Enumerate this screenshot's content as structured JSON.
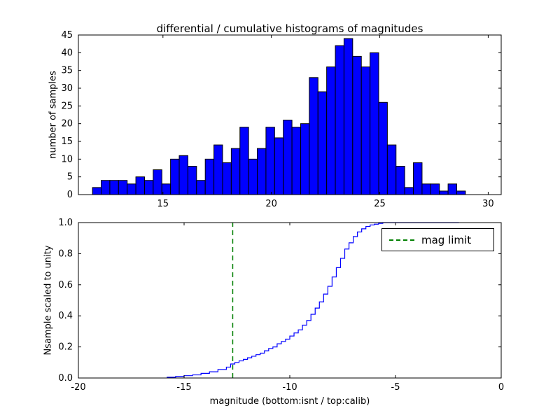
{
  "figure": {
    "background": "#ffffff"
  },
  "chart_data": [
    {
      "type": "bar",
      "title": "differential / cumulative histograms of magnitudes",
      "xlabel": "",
      "ylabel": "number of samples",
      "xlim": [
        11.1,
        30.6
      ],
      "ylim": [
        0,
        45
      ],
      "xticks": [
        15,
        20,
        25,
        30
      ],
      "xtick_labels": [
        "15",
        "20",
        "25",
        "30"
      ],
      "yticks": [
        0,
        5,
        10,
        15,
        20,
        25,
        30,
        35,
        40,
        45
      ],
      "ytick_labels": [
        "0",
        "5",
        "10",
        "15",
        "20",
        "25",
        "30",
        "35",
        "40",
        "45"
      ],
      "grid": false,
      "bar_color": "#0000ff",
      "bar_edge_color": "#000000",
      "bin_start": 11.75,
      "bin_width": 0.4,
      "values": [
        2,
        4,
        4,
        4,
        3,
        5,
        4,
        7,
        3,
        10,
        11,
        8,
        4,
        10,
        14,
        9,
        13,
        19,
        10,
        13,
        19,
        16,
        21,
        19,
        20,
        33,
        29,
        36,
        42,
        44,
        39,
        36,
        40,
        26,
        14,
        8,
        2,
        9,
        3,
        3,
        1,
        3,
        1
      ]
    },
    {
      "type": "line",
      "title": "",
      "xlabel": "magnitude (bottom:isnt / top:calib)",
      "ylabel": "Nsample scaled to unity",
      "xlim": [
        -20,
        0
      ],
      "ylim": [
        0,
        1
      ],
      "xticks": [
        -20,
        -15,
        -10,
        -5,
        0
      ],
      "xtick_labels": [
        "-20",
        "-15",
        "-10",
        "-5",
        "0"
      ],
      "yticks": [
        0,
        0.2,
        0.4,
        0.6,
        0.8,
        1.0
      ],
      "ytick_labels": [
        "0.0",
        "0.2",
        "0.4",
        "0.6",
        "0.8",
        "1.0"
      ],
      "grid": false,
      "line_color": "#0000ff",
      "step_points": [
        [
          -15.8,
          0.005
        ],
        [
          -15.4,
          0.01
        ],
        [
          -15.0,
          0.015
        ],
        [
          -14.6,
          0.02
        ],
        [
          -14.2,
          0.03
        ],
        [
          -13.8,
          0.04
        ],
        [
          -13.4,
          0.055
        ],
        [
          -13.0,
          0.07
        ],
        [
          -12.8,
          0.09
        ],
        [
          -12.6,
          0.1
        ],
        [
          -12.4,
          0.11
        ],
        [
          -12.2,
          0.12
        ],
        [
          -12.0,
          0.13
        ],
        [
          -11.8,
          0.14
        ],
        [
          -11.6,
          0.15
        ],
        [
          -11.4,
          0.16
        ],
        [
          -11.2,
          0.175
        ],
        [
          -11.0,
          0.19
        ],
        [
          -10.8,
          0.2
        ],
        [
          -10.6,
          0.22
        ],
        [
          -10.4,
          0.235
        ],
        [
          -10.2,
          0.25
        ],
        [
          -10.0,
          0.27
        ],
        [
          -9.8,
          0.29
        ],
        [
          -9.6,
          0.31
        ],
        [
          -9.4,
          0.34
        ],
        [
          -9.2,
          0.37
        ],
        [
          -9.0,
          0.41
        ],
        [
          -8.8,
          0.45
        ],
        [
          -8.6,
          0.49
        ],
        [
          -8.4,
          0.54
        ],
        [
          -8.2,
          0.59
        ],
        [
          -8.0,
          0.65
        ],
        [
          -7.8,
          0.71
        ],
        [
          -7.6,
          0.77
        ],
        [
          -7.4,
          0.83
        ],
        [
          -7.2,
          0.87
        ],
        [
          -7.0,
          0.91
        ],
        [
          -6.8,
          0.94
        ],
        [
          -6.6,
          0.96
        ],
        [
          -6.4,
          0.975
        ],
        [
          -6.2,
          0.985
        ],
        [
          -6.0,
          0.99
        ],
        [
          -5.8,
          0.995
        ],
        [
          -5.6,
          1.0
        ],
        [
          -2.0,
          1.0
        ]
      ],
      "vline": {
        "x": -12.7,
        "color": "#008000",
        "style": "dashed",
        "label": "mag limit"
      },
      "legend": {
        "label": "mag limit",
        "line_color": "#008000",
        "position": "upper right"
      }
    }
  ]
}
